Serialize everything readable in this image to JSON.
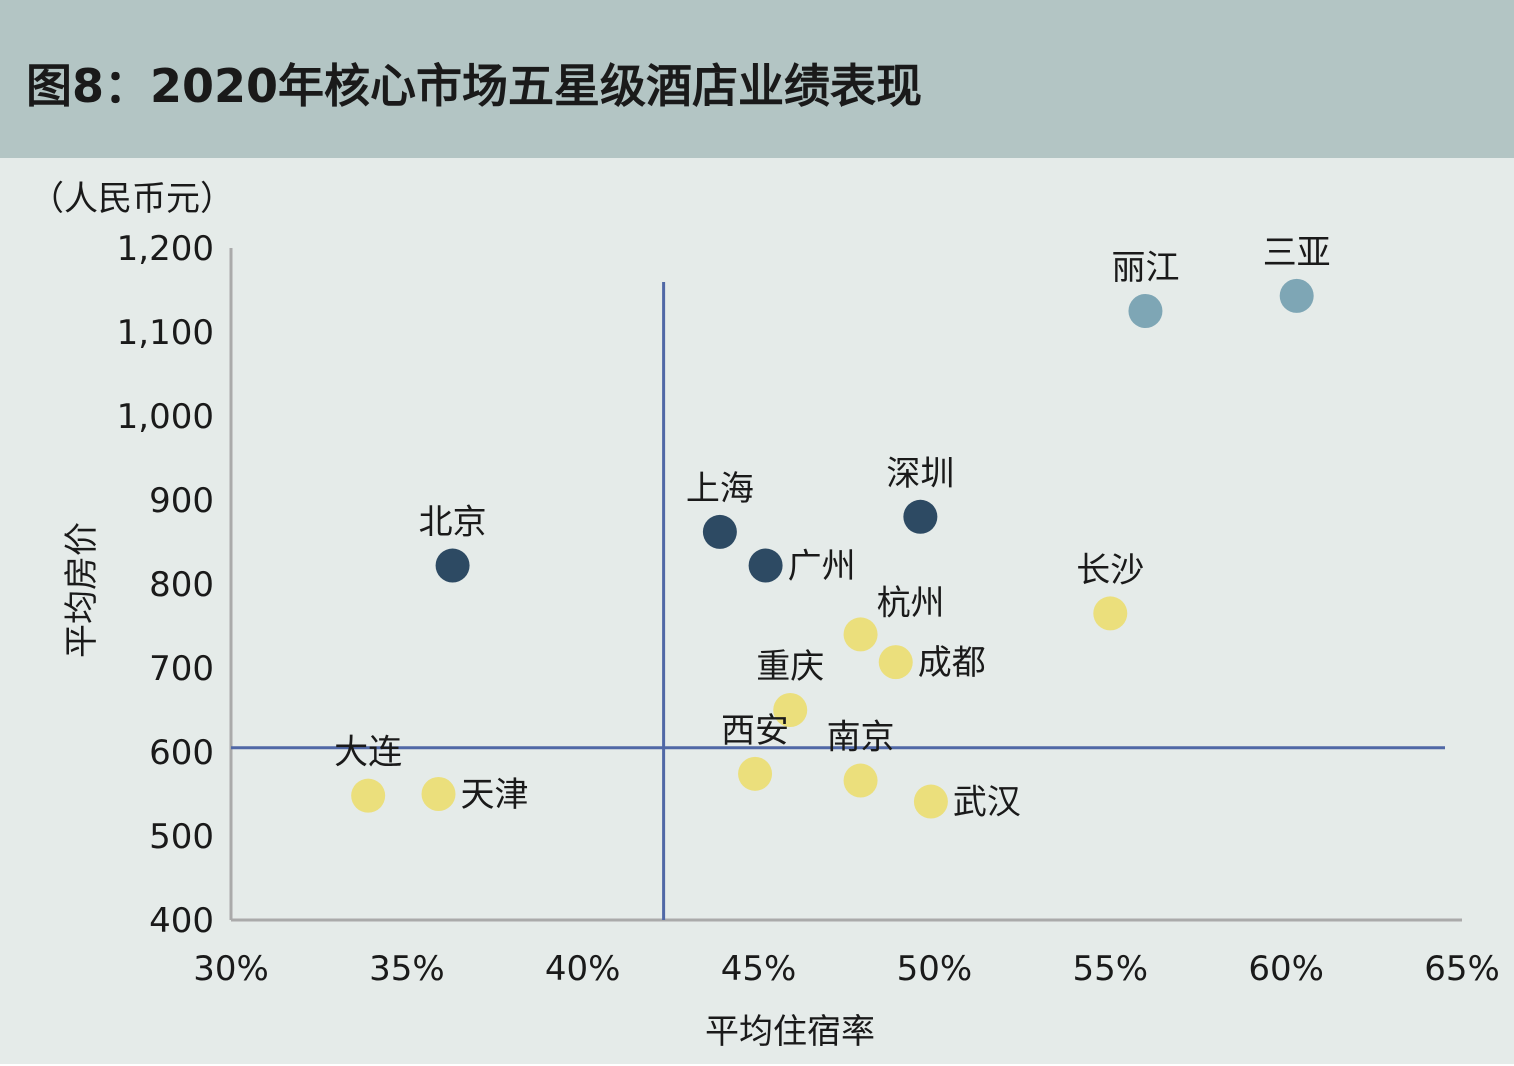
{
  "title": "图8：2020年核心市场五星级酒店业绩表现",
  "chart_data": {
    "type": "scatter",
    "title": "图8：2020年核心市场五星级酒店业绩表现",
    "xlabel": "平均住宿率",
    "ylabel": "平均房价",
    "y_unit": "（人民币元）",
    "xlim": [
      30,
      65
    ],
    "ylim": [
      400,
      1200
    ],
    "x_ticks": [
      "30%",
      "35%",
      "40%",
      "45%",
      "50%",
      "55%",
      "60%",
      "65%"
    ],
    "y_ticks": [
      "400",
      "500",
      "600",
      "700",
      "800",
      "900",
      "1,000",
      "1,100",
      "1,200"
    ],
    "grid": false,
    "reference_lines": {
      "x": 42.3,
      "y": 605
    },
    "colors": {
      "tier_dark": "#2d4a63",
      "tier_blue": "#7ea6b5",
      "tier_yellow": "#ebdf7c",
      "reference": "#5068a6",
      "axis": "#aaaaaa"
    },
    "points": [
      {
        "name": "丽江",
        "x": 56.0,
        "y": 1125,
        "color": "#7ea6b5",
        "label_pos": "top"
      },
      {
        "name": "三亚",
        "x": 60.3,
        "y": 1143,
        "color": "#7ea6b5",
        "label_pos": "top"
      },
      {
        "name": "北京",
        "x": 36.3,
        "y": 822,
        "color": "#2d4a63",
        "label_pos": "top"
      },
      {
        "name": "上海",
        "x": 43.9,
        "y": 862,
        "color": "#2d4a63",
        "label_pos": "top"
      },
      {
        "name": "深圳",
        "x": 49.6,
        "y": 880,
        "color": "#2d4a63",
        "label_pos": "top"
      },
      {
        "name": "广州",
        "x": 45.2,
        "y": 822,
        "color": "#2d4a63",
        "label_pos": "right"
      },
      {
        "name": "长沙",
        "x": 55.0,
        "y": 765,
        "color": "#ebdf7c",
        "label_pos": "top"
      },
      {
        "name": "杭州",
        "x": 47.9,
        "y": 740,
        "color": "#ebdf7c",
        "label_pos": "top-right"
      },
      {
        "name": "成都",
        "x": 48.9,
        "y": 707,
        "color": "#ebdf7c",
        "label_pos": "right"
      },
      {
        "name": "重庆",
        "x": 45.9,
        "y": 650,
        "color": "#ebdf7c",
        "label_pos": "top"
      },
      {
        "name": "西安",
        "x": 44.9,
        "y": 574,
        "color": "#ebdf7c",
        "label_pos": "top"
      },
      {
        "name": "南京",
        "x": 47.9,
        "y": 566,
        "color": "#ebdf7c",
        "label_pos": "top"
      },
      {
        "name": "武汉",
        "x": 49.9,
        "y": 541,
        "color": "#ebdf7c",
        "label_pos": "right"
      },
      {
        "name": "大连",
        "x": 33.9,
        "y": 548,
        "color": "#ebdf7c",
        "label_pos": "top"
      },
      {
        "name": "天津",
        "x": 35.9,
        "y": 550,
        "color": "#ebdf7c",
        "label_pos": "right"
      }
    ]
  }
}
